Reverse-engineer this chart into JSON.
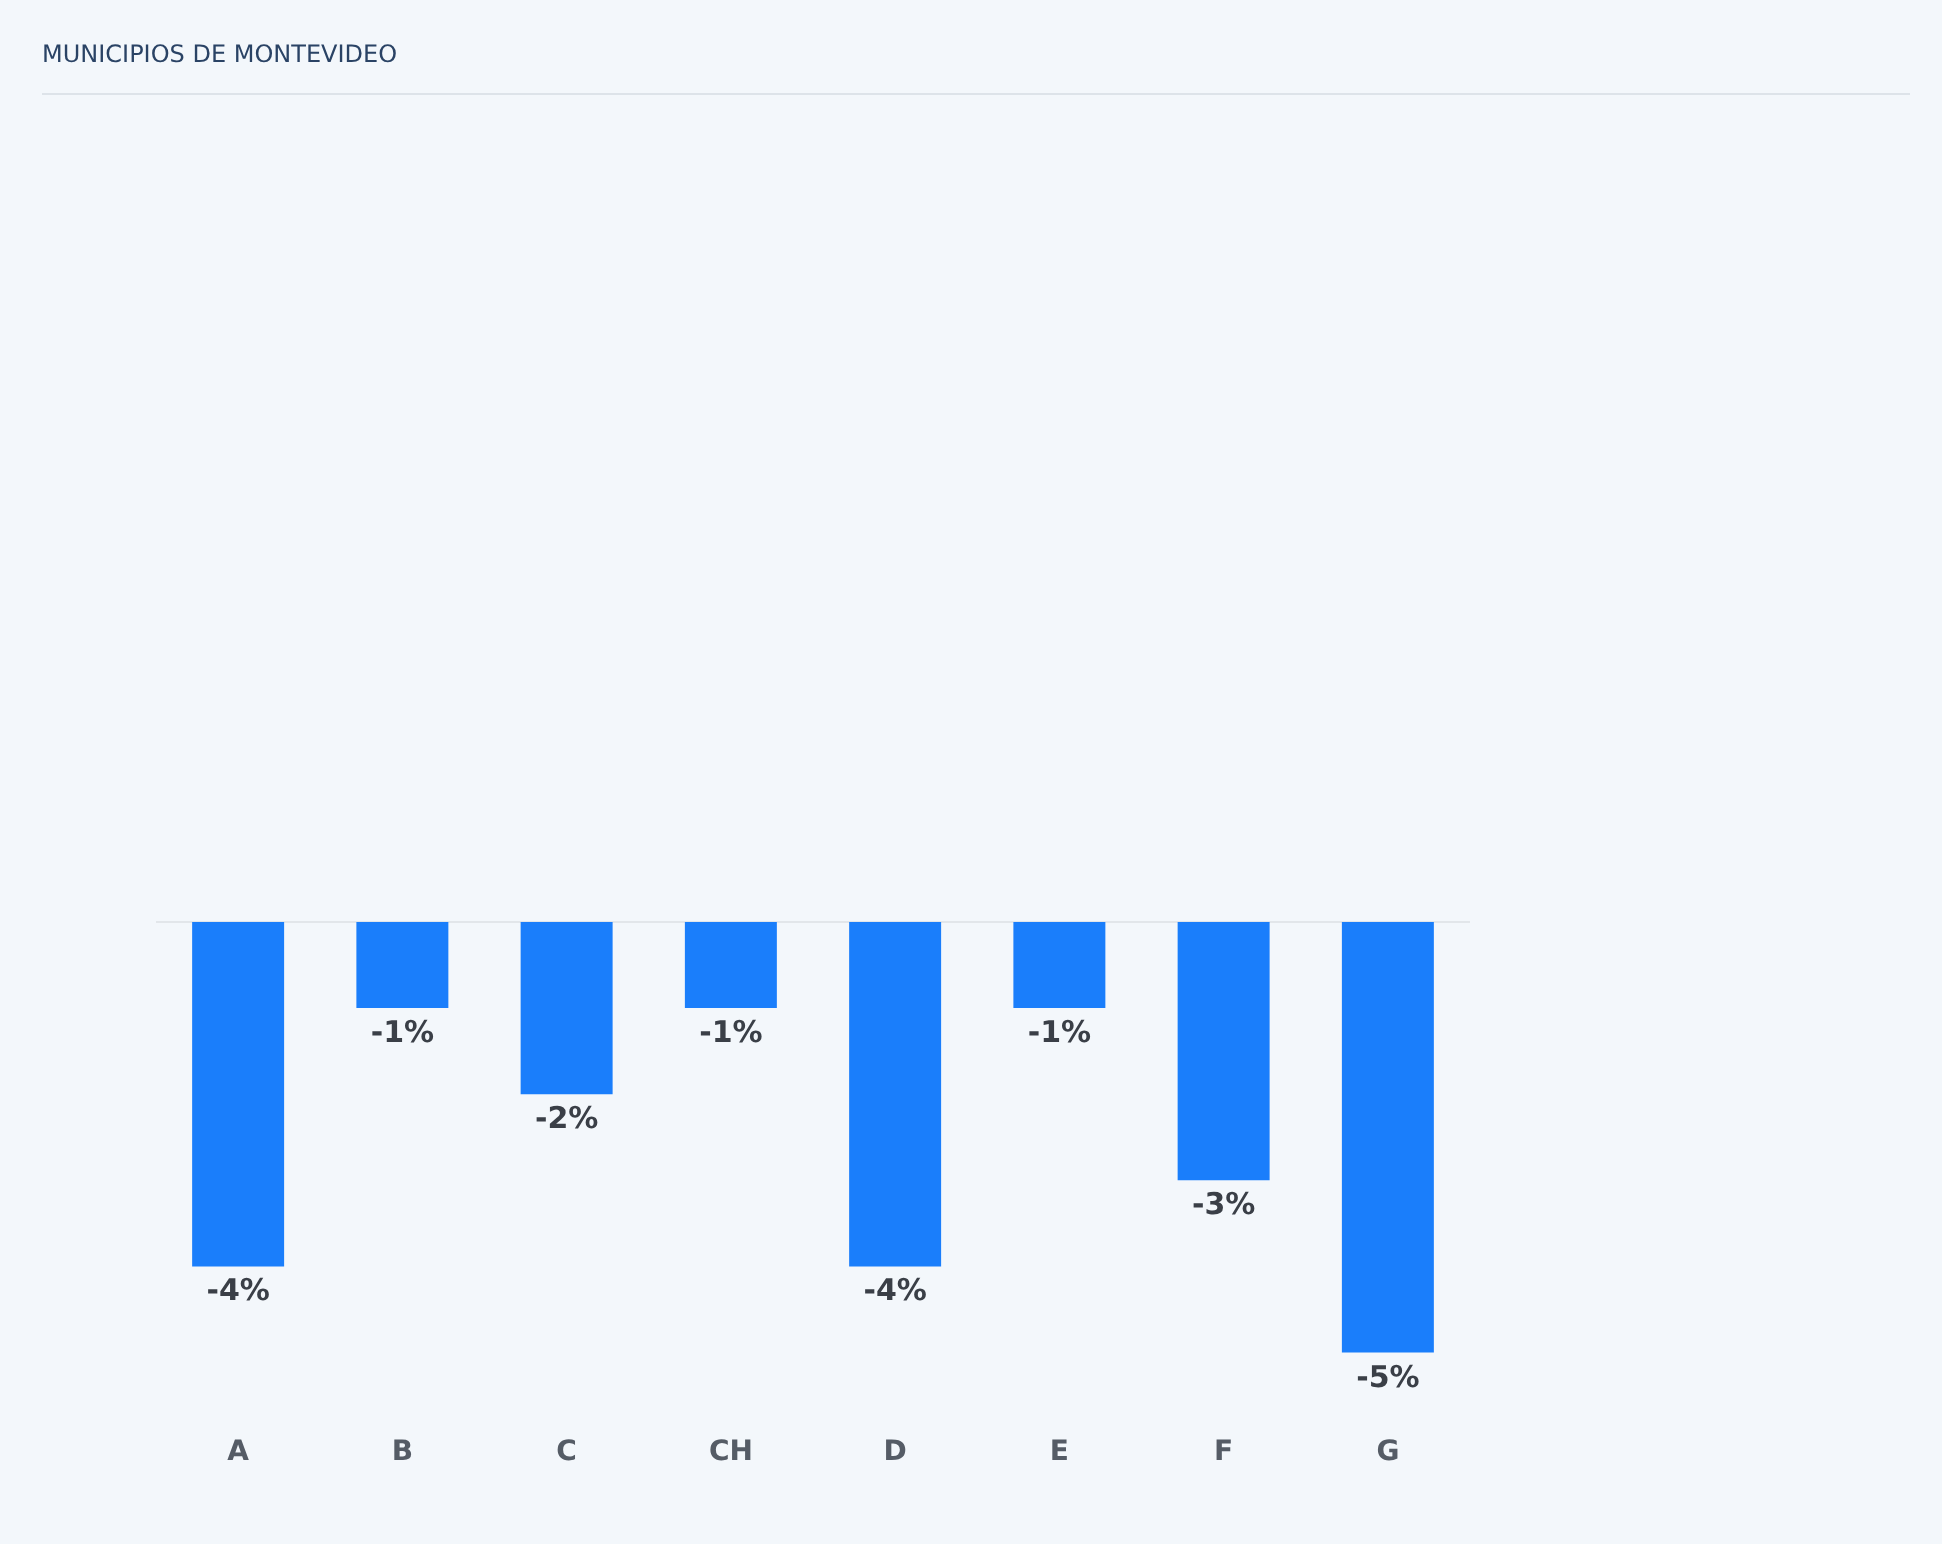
{
  "chart_data": {
    "type": "bar",
    "title": "MUNICIPIOS DE MONTEVIDEO",
    "categories": [
      "A",
      "B",
      "C",
      "CH",
      "D",
      "E",
      "F",
      "G"
    ],
    "values": [
      -4,
      -1,
      -2,
      -1,
      -4,
      -1,
      -3,
      -5
    ],
    "value_labels": [
      "-4%",
      "-1%",
      "-2%",
      "-1%",
      "-4%",
      "-1%",
      "-3%",
      "-5%"
    ],
    "color": "#1a7efb",
    "grid": false,
    "legend": false
  }
}
